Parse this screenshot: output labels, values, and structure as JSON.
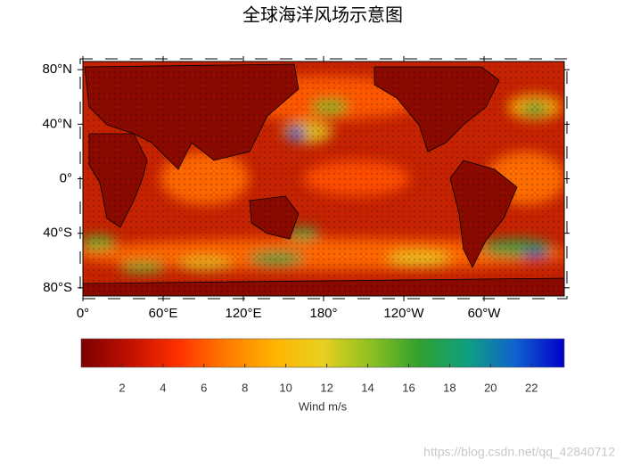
{
  "title": "全球海洋风场示意图",
  "map": {
    "lat_range": [
      -86,
      86
    ],
    "lon_range": [
      0,
      360
    ],
    "lat_ticks": [
      {
        "value": 80,
        "label": "80°N"
      },
      {
        "value": 40,
        "label": "40°N"
      },
      {
        "value": 0,
        "label": "0°"
      },
      {
        "value": -40,
        "label": "40°S"
      },
      {
        "value": -80,
        "label": "80°S"
      }
    ],
    "lon_ticks": [
      {
        "value": 0,
        "label": "0°"
      },
      {
        "value": 60,
        "label": "60°E"
      },
      {
        "value": 120,
        "label": "120°E"
      },
      {
        "value": 180,
        "label": "180°"
      },
      {
        "value": 240,
        "label": "120°W"
      },
      {
        "value": 300,
        "label": "60°W"
      }
    ]
  },
  "colorbar": {
    "label": "Wind m/s",
    "range": [
      0,
      23.6
    ],
    "ticks": [
      2,
      4,
      6,
      8,
      10,
      12,
      14,
      16,
      18,
      20,
      22
    ],
    "colors": [
      "#7a0000",
      "#c01000",
      "#ff3000",
      "#ff7a00",
      "#ffb400",
      "#e8d020",
      "#8cc020",
      "#30a030",
      "#10a080",
      "#1060d0",
      "#0000c8"
    ]
  },
  "watermark": "https://blog.csdn.net/qq_42840712"
}
